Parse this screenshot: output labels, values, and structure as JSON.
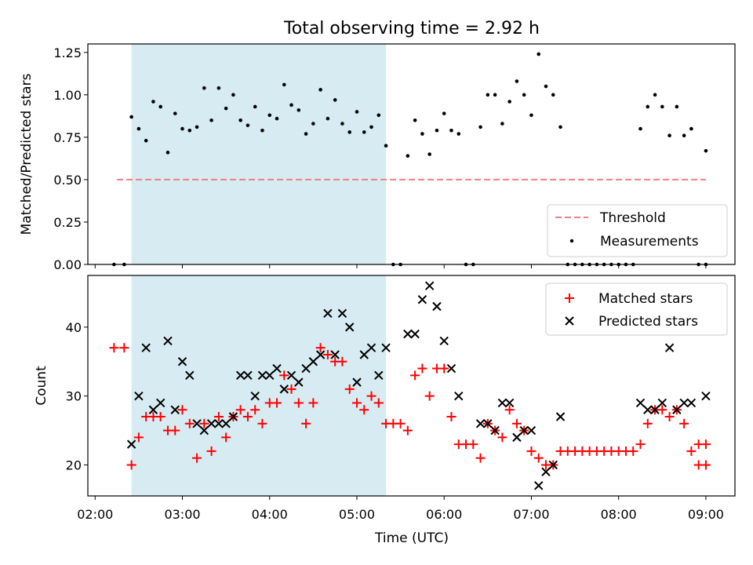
{
  "chart_data": [
    {
      "type": "scatter",
      "title": "Total observing time = 2.92 h",
      "ylabel": "Matched/Predicted stars",
      "xlabel": "",
      "ylim": [
        0,
        1.3
      ],
      "yticks": [
        "0.00",
        "0.25",
        "0.50",
        "0.75",
        "1.00",
        "1.25"
      ],
      "shaded_interval": [
        "02:25",
        "05:20"
      ],
      "shade_color": "#add8e6",
      "threshold": {
        "name": "Threshold",
        "value": 0.5,
        "x": [
          "02:15",
          "09:00"
        ],
        "color": "#f08080"
      },
      "legend_position": "lower-right",
      "series": [
        {
          "name": "Measurements",
          "color": "#000000",
          "points": [
            [
              "02:13",
              0.0
            ],
            [
              "02:20",
              0.0
            ],
            [
              "02:25",
              0.87
            ],
            [
              "02:30",
              0.8
            ],
            [
              "02:35",
              0.73
            ],
            [
              "02:40",
              0.96
            ],
            [
              "02:45",
              0.93
            ],
            [
              "02:50",
              0.66
            ],
            [
              "02:55",
              0.89
            ],
            [
              "03:00",
              0.8
            ],
            [
              "03:05",
              0.79
            ],
            [
              "03:10",
              0.81
            ],
            [
              "03:15",
              1.04
            ],
            [
              "03:20",
              0.85
            ],
            [
              "03:25",
              1.04
            ],
            [
              "03:30",
              0.92
            ],
            [
              "03:35",
              1.0
            ],
            [
              "03:40",
              0.85
            ],
            [
              "03:45",
              0.82
            ],
            [
              "03:50",
              0.93
            ],
            [
              "03:55",
              0.79
            ],
            [
              "04:00",
              0.88
            ],
            [
              "04:05",
              0.86
            ],
            [
              "04:10",
              1.06
            ],
            [
              "04:15",
              0.94
            ],
            [
              "04:20",
              0.91
            ],
            [
              "04:25",
              0.77
            ],
            [
              "04:30",
              0.83
            ],
            [
              "04:35",
              1.03
            ],
            [
              "04:40",
              0.86
            ],
            [
              "04:45",
              0.97
            ],
            [
              "04:50",
              0.83
            ],
            [
              "04:55",
              0.78
            ],
            [
              "05:00",
              0.9
            ],
            [
              "05:05",
              0.78
            ],
            [
              "05:10",
              0.81
            ],
            [
              "05:15",
              0.88
            ],
            [
              "05:20",
              0.7
            ],
            [
              "05:25",
              0.0
            ],
            [
              "05:30",
              0.0
            ],
            [
              "05:35",
              0.64
            ],
            [
              "05:40",
              0.85
            ],
            [
              "05:45",
              0.77
            ],
            [
              "05:50",
              0.65
            ],
            [
              "05:55",
              0.79
            ],
            [
              "06:00",
              0.89
            ],
            [
              "06:05",
              0.79
            ],
            [
              "06:10",
              0.77
            ],
            [
              "06:15",
              0.0
            ],
            [
              "06:20",
              0.0
            ],
            [
              "06:25",
              0.81
            ],
            [
              "06:30",
              1.0
            ],
            [
              "06:35",
              1.0
            ],
            [
              "06:40",
              0.83
            ],
            [
              "06:45",
              0.96
            ],
            [
              "06:50",
              1.08
            ],
            [
              "06:55",
              1.0
            ],
            [
              "07:00",
              0.88
            ],
            [
              "07:05",
              1.24
            ],
            [
              "07:10",
              1.05
            ],
            [
              "07:15",
              1.0
            ],
            [
              "07:20",
              0.81
            ],
            [
              "07:25",
              0.0
            ],
            [
              "07:30",
              0.0
            ],
            [
              "07:35",
              0.0
            ],
            [
              "07:40",
              0.0
            ],
            [
              "07:45",
              0.0
            ],
            [
              "07:50",
              0.0
            ],
            [
              "07:55",
              0.0
            ],
            [
              "08:00",
              0.0
            ],
            [
              "08:05",
              0.0
            ],
            [
              "08:10",
              0.0
            ],
            [
              "08:15",
              0.8
            ],
            [
              "08:20",
              0.93
            ],
            [
              "08:25",
              1.0
            ],
            [
              "08:30",
              0.93
            ],
            [
              "08:35",
              0.76
            ],
            [
              "08:40",
              0.93
            ],
            [
              "08:45",
              0.76
            ],
            [
              "08:50",
              0.8
            ],
            [
              "08:55",
              0.0
            ],
            [
              "09:00",
              0.67
            ],
            [
              "09:00",
              0.0
            ]
          ]
        }
      ]
    },
    {
      "type": "scatter",
      "title": "",
      "ylabel": "Count",
      "xlabel": "Time (UTC)",
      "xlim": [
        "01:55",
        "09:20"
      ],
      "xticks": [
        "02:00",
        "03:00",
        "04:00",
        "05:00",
        "06:00",
        "07:00",
        "08:00",
        "09:00"
      ],
      "ylim": [
        15.5,
        47.5
      ],
      "yticks": [
        "20",
        "30",
        "40"
      ],
      "shaded_interval": [
        "02:25",
        "05:20"
      ],
      "shade_color": "#add8e6",
      "legend_position": "upper-right",
      "series": [
        {
          "name": "Matched stars",
          "marker": "plus",
          "color": "#ff0000",
          "points": [
            [
              "02:13",
              37
            ],
            [
              "02:20",
              37
            ],
            [
              "02:25",
              20
            ],
            [
              "02:30",
              24
            ],
            [
              "02:35",
              27
            ],
            [
              "02:40",
              27
            ],
            [
              "02:45",
              27
            ],
            [
              "02:50",
              25
            ],
            [
              "02:55",
              25
            ],
            [
              "03:00",
              28
            ],
            [
              "03:05",
              26
            ],
            [
              "03:10",
              21
            ],
            [
              "03:15",
              26
            ],
            [
              "03:20",
              22
            ],
            [
              "03:25",
              27
            ],
            [
              "03:30",
              24
            ],
            [
              "03:35",
              27
            ],
            [
              "03:40",
              28
            ],
            [
              "03:45",
              27
            ],
            [
              "03:50",
              28
            ],
            [
              "03:55",
              26
            ],
            [
              "04:00",
              29
            ],
            [
              "04:05",
              29
            ],
            [
              "04:10",
              33
            ],
            [
              "04:15",
              31
            ],
            [
              "04:20",
              29
            ],
            [
              "04:25",
              26
            ],
            [
              "04:30",
              29
            ],
            [
              "04:35",
              37
            ],
            [
              "04:40",
              36
            ],
            [
              "04:45",
              35
            ],
            [
              "04:50",
              35
            ],
            [
              "04:55",
              31
            ],
            [
              "05:00",
              29
            ],
            [
              "05:05",
              28
            ],
            [
              "05:10",
              30
            ],
            [
              "05:15",
              29
            ],
            [
              "05:20",
              26
            ],
            [
              "05:25",
              26
            ],
            [
              "05:30",
              26
            ],
            [
              "05:35",
              25
            ],
            [
              "05:40",
              33
            ],
            [
              "05:45",
              34
            ],
            [
              "05:50",
              30
            ],
            [
              "05:55",
              34
            ],
            [
              "06:00",
              34
            ],
            [
              "06:05",
              27
            ],
            [
              "06:10",
              23
            ],
            [
              "06:15",
              23
            ],
            [
              "06:20",
              23
            ],
            [
              "06:25",
              21
            ],
            [
              "06:30",
              26
            ],
            [
              "06:35",
              25
            ],
            [
              "06:40",
              24
            ],
            [
              "06:45",
              28
            ],
            [
              "06:50",
              26
            ],
            [
              "06:55",
              25
            ],
            [
              "07:00",
              22
            ],
            [
              "07:05",
              21
            ],
            [
              "07:10",
              20
            ],
            [
              "07:15",
              20
            ],
            [
              "07:20",
              22
            ],
            [
              "07:25",
              22
            ],
            [
              "07:30",
              22
            ],
            [
              "07:35",
              22
            ],
            [
              "07:40",
              22
            ],
            [
              "07:45",
              22
            ],
            [
              "07:50",
              22
            ],
            [
              "07:55",
              22
            ],
            [
              "08:00",
              22
            ],
            [
              "08:05",
              22
            ],
            [
              "08:10",
              22
            ],
            [
              "08:15",
              23
            ],
            [
              "08:20",
              26
            ],
            [
              "08:25",
              28
            ],
            [
              "08:30",
              28
            ],
            [
              "08:35",
              27
            ],
            [
              "08:40",
              28
            ],
            [
              "08:45",
              26
            ],
            [
              "08:50",
              22
            ],
            [
              "08:55",
              23
            ],
            [
              "09:00",
              23
            ],
            [
              "08:55",
              20
            ],
            [
              "09:00",
              20
            ]
          ]
        },
        {
          "name": "Predicted stars",
          "marker": "x",
          "color": "#000000",
          "points": [
            [
              "02:25",
              23
            ],
            [
              "02:30",
              30
            ],
            [
              "02:35",
              37
            ],
            [
              "02:40",
              28
            ],
            [
              "02:45",
              29
            ],
            [
              "02:50",
              38
            ],
            [
              "02:55",
              28
            ],
            [
              "03:00",
              35
            ],
            [
              "03:05",
              33
            ],
            [
              "03:10",
              26
            ],
            [
              "03:15",
              25
            ],
            [
              "03:20",
              26
            ],
            [
              "03:25",
              26
            ],
            [
              "03:30",
              26
            ],
            [
              "03:35",
              27
            ],
            [
              "03:40",
              33
            ],
            [
              "03:45",
              33
            ],
            [
              "03:50",
              30
            ],
            [
              "03:55",
              33
            ],
            [
              "04:00",
              33
            ],
            [
              "04:05",
              34
            ],
            [
              "04:10",
              31
            ],
            [
              "04:15",
              33
            ],
            [
              "04:20",
              32
            ],
            [
              "04:25",
              34
            ],
            [
              "04:30",
              35
            ],
            [
              "04:35",
              36
            ],
            [
              "04:40",
              42
            ],
            [
              "04:45",
              36
            ],
            [
              "04:50",
              42
            ],
            [
              "04:55",
              40
            ],
            [
              "05:00",
              32
            ],
            [
              "05:05",
              36
            ],
            [
              "05:10",
              37
            ],
            [
              "05:15",
              33
            ],
            [
              "05:20",
              37
            ],
            [
              "05:35",
              39
            ],
            [
              "05:40",
              39
            ],
            [
              "05:45",
              44
            ],
            [
              "05:50",
              46
            ],
            [
              "05:55",
              43
            ],
            [
              "06:00",
              38
            ],
            [
              "06:05",
              34
            ],
            [
              "06:10",
              30
            ],
            [
              "06:25",
              26
            ],
            [
              "06:30",
              26
            ],
            [
              "06:35",
              25
            ],
            [
              "06:40",
              29
            ],
            [
              "06:45",
              29
            ],
            [
              "06:50",
              24
            ],
            [
              "06:55",
              25
            ],
            [
              "07:00",
              25
            ],
            [
              "07:05",
              17
            ],
            [
              "07:10",
              19
            ],
            [
              "07:15",
              20
            ],
            [
              "07:20",
              27
            ],
            [
              "08:15",
              29
            ],
            [
              "08:20",
              28
            ],
            [
              "08:25",
              28
            ],
            [
              "08:30",
              29
            ],
            [
              "08:35",
              37
            ],
            [
              "08:40",
              28
            ],
            [
              "08:45",
              29
            ],
            [
              "08:50",
              29
            ],
            [
              "09:00",
              30
            ]
          ]
        }
      ]
    }
  ]
}
